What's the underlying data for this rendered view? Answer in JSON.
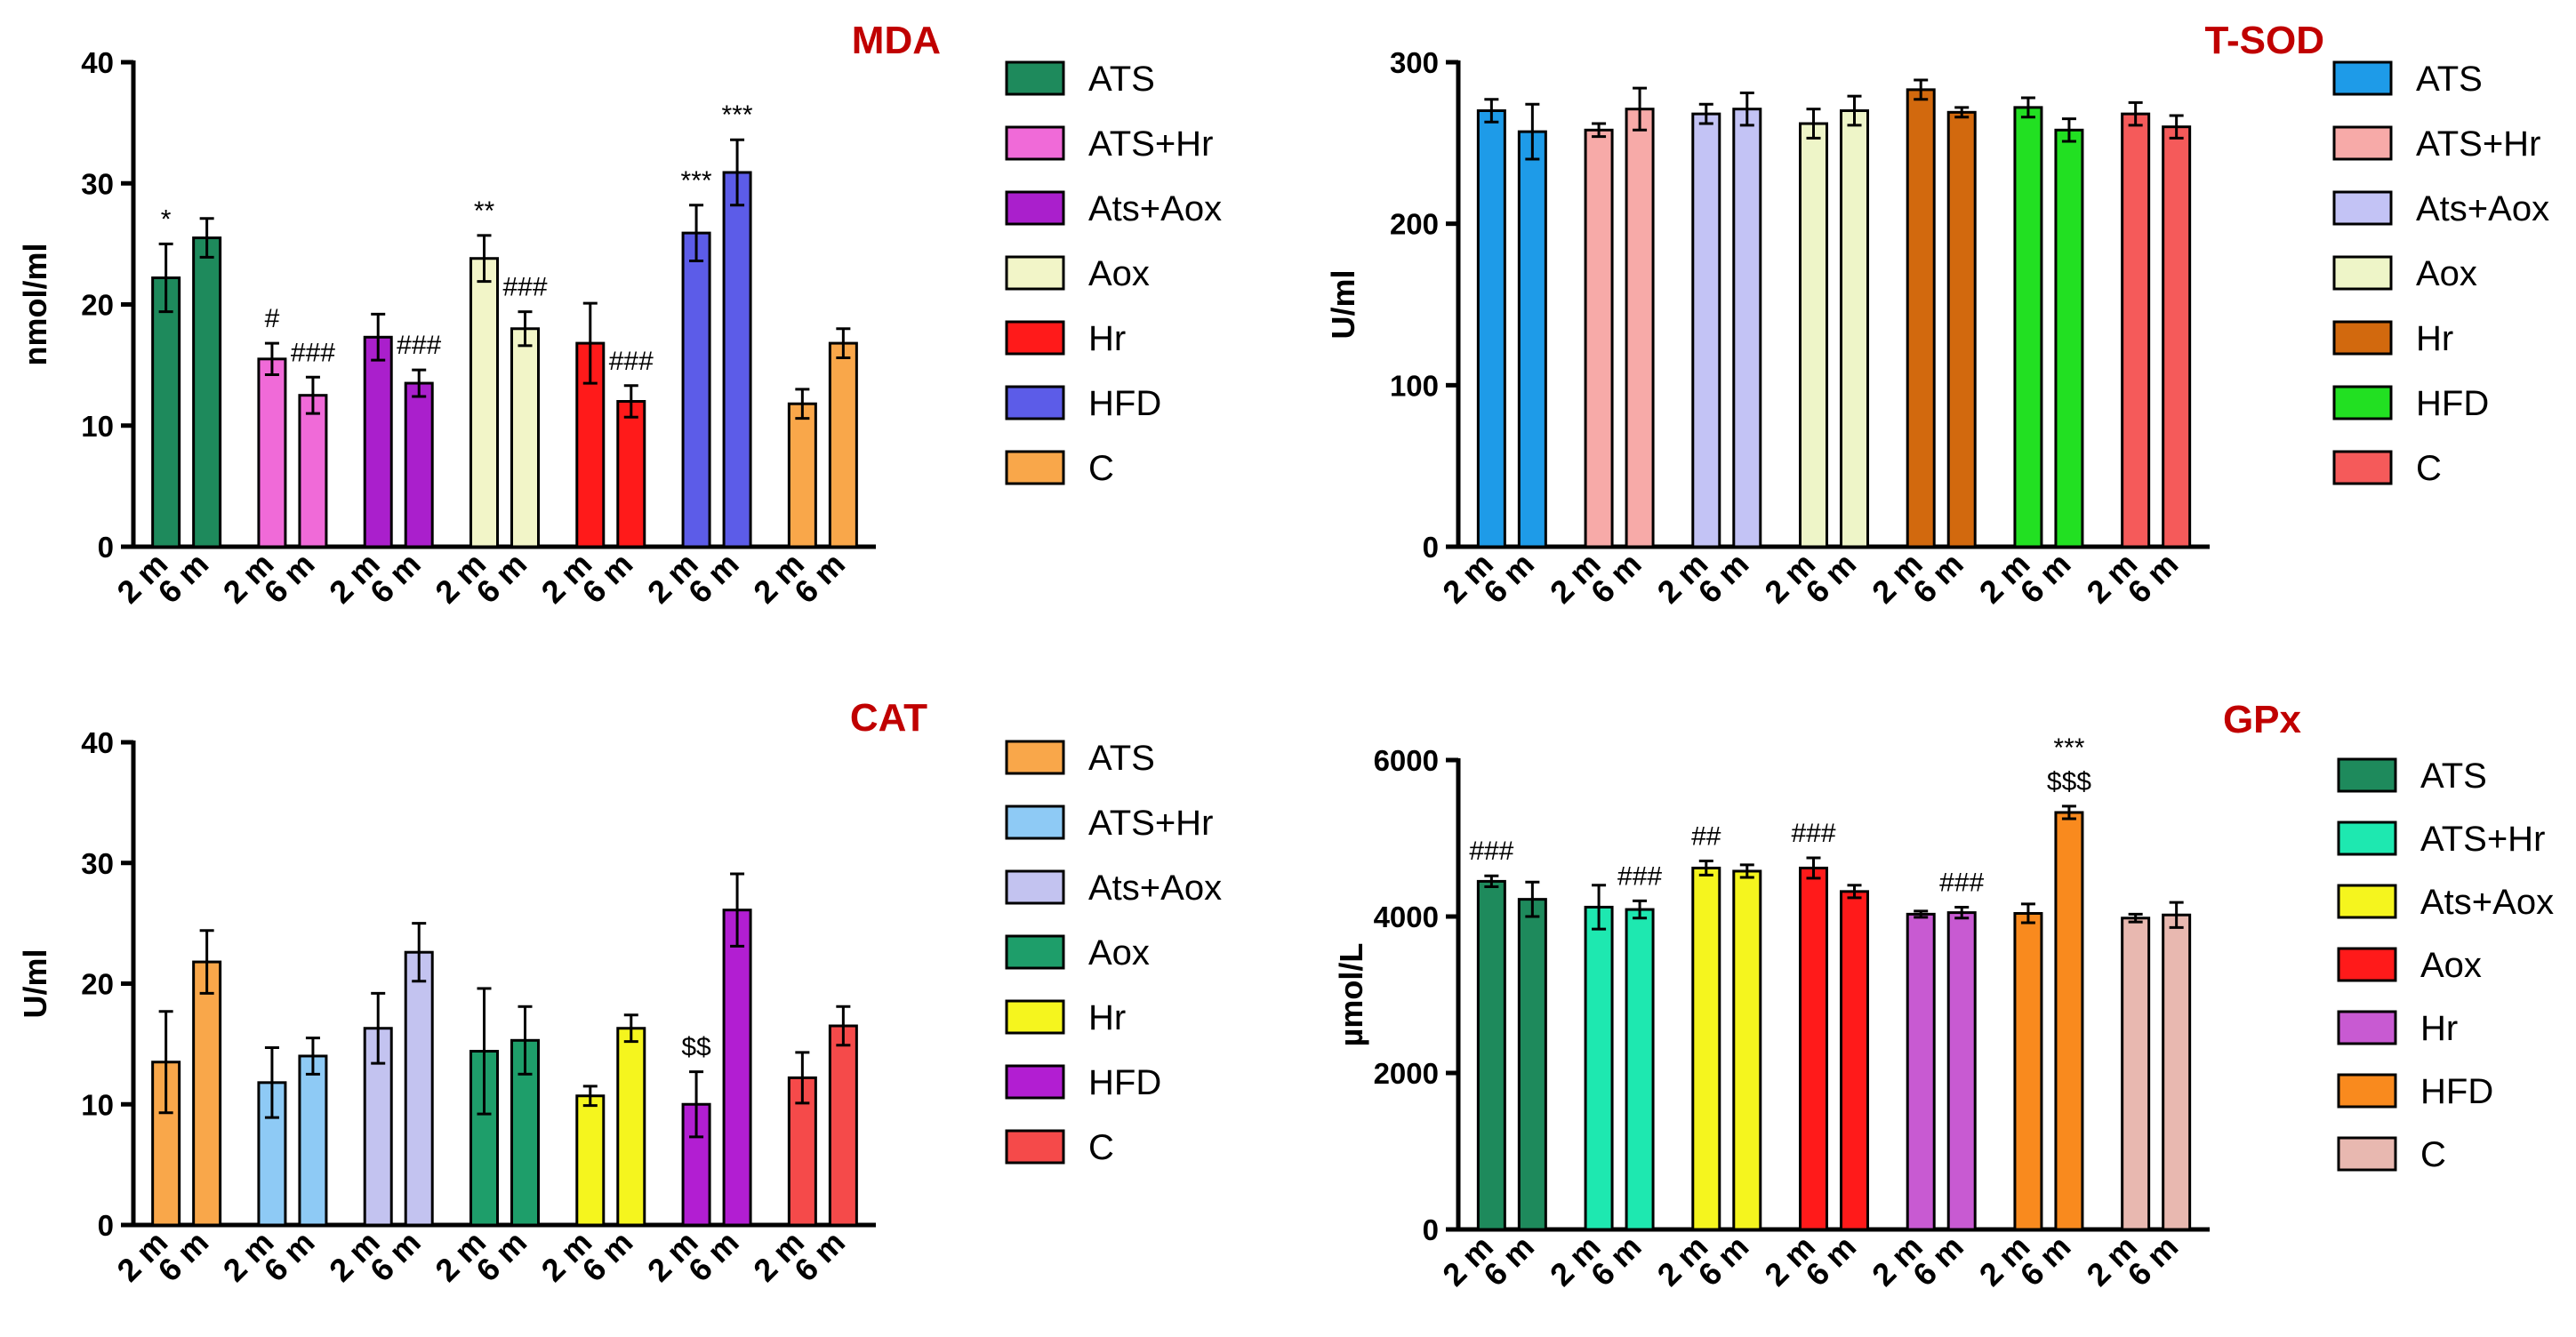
{
  "colors": {
    "title": "#c00000",
    "axis": "#000000"
  },
  "chart_data": [
    {
      "id": "mda",
      "type": "bar",
      "title": "MDA",
      "ylabel": "nmol/ml",
      "ylim": [
        0,
        40
      ],
      "yticks": [
        "0",
        "10",
        "20",
        "30",
        "40"
      ],
      "categories": [
        "2 m",
        "6 m"
      ],
      "groups": [
        {
          "name": "ATS",
          "color": "#1e8a5c",
          "values": [
            22.2,
            25.5
          ],
          "errors": [
            2.8,
            1.6
          ],
          "annotations": [
            "*",
            ""
          ]
        },
        {
          "name": "ATS+Hr",
          "color": "#f06ad8",
          "values": [
            15.5,
            12.5
          ],
          "errors": [
            1.3,
            1.5
          ],
          "annotations": [
            "#",
            "###"
          ]
        },
        {
          "name": "Ats+Aox",
          "color": "#aa1fcc",
          "values": [
            17.3,
            13.5
          ],
          "errors": [
            1.9,
            1.1
          ],
          "annotations": [
            "",
            "###"
          ]
        },
        {
          "name": "Aox",
          "color": "#f2f5c8",
          "values": [
            23.8,
            18.0
          ],
          "errors": [
            1.9,
            1.4
          ],
          "annotations": [
            "**",
            "###"
          ]
        },
        {
          "name": "Hr",
          "color": "#ff1a1a",
          "values": [
            16.8,
            12.0
          ],
          "errors": [
            3.3,
            1.3
          ],
          "annotations": [
            "",
            "###"
          ]
        },
        {
          "name": "HFD",
          "color": "#5c5ce8",
          "values": [
            25.9,
            30.9
          ],
          "errors": [
            2.3,
            2.7
          ],
          "annotations": [
            "***",
            "***"
          ]
        },
        {
          "name": "C",
          "color": "#f9a74a",
          "values": [
            11.8,
            16.8
          ],
          "errors": [
            1.2,
            1.2
          ],
          "annotations": [
            "",
            ""
          ]
        }
      ]
    },
    {
      "id": "tsod",
      "type": "bar",
      "title": "T-SOD",
      "ylabel": "U/ml",
      "ylim": [
        0,
        300
      ],
      "yticks": [
        "0",
        "100",
        "200",
        "300"
      ],
      "categories": [
        "2 m",
        "6 m"
      ],
      "groups": [
        {
          "name": "ATS",
          "color": "#1e9be8",
          "values": [
            270,
            257
          ],
          "errors": [
            7,
            17
          ],
          "annotations": [
            "",
            ""
          ]
        },
        {
          "name": "ATS+Hr",
          "color": "#f7aaa8",
          "values": [
            258,
            271
          ],
          "errors": [
            4,
            13
          ],
          "annotations": [
            "",
            ""
          ]
        },
        {
          "name": "Ats+Aox",
          "color": "#c3c3f5",
          "values": [
            268,
            271
          ],
          "errors": [
            6,
            10
          ],
          "annotations": [
            "",
            ""
          ]
        },
        {
          "name": "Aox",
          "color": "#eef5c8",
          "values": [
            262,
            270
          ],
          "errors": [
            9,
            9
          ],
          "annotations": [
            "",
            ""
          ]
        },
        {
          "name": "Hr",
          "color": "#d2690e",
          "values": [
            283,
            269
          ],
          "errors": [
            6,
            3
          ],
          "annotations": [
            "",
            ""
          ]
        },
        {
          "name": "HFD",
          "color": "#22e022",
          "values": [
            272,
            258
          ],
          "errors": [
            6,
            7
          ],
          "annotations": [
            "",
            ""
          ]
        },
        {
          "name": "C",
          "color": "#f55a5a",
          "values": [
            268,
            260
          ],
          "errors": [
            7,
            7
          ],
          "annotations": [
            "",
            ""
          ]
        }
      ]
    },
    {
      "id": "cat",
      "type": "bar",
      "title": "CAT",
      "ylabel": "U/ml",
      "ylim": [
        0,
        40
      ],
      "yticks": [
        "0",
        "10",
        "20",
        "30",
        "40"
      ],
      "categories": [
        "2 m",
        "6 m"
      ],
      "groups": [
        {
          "name": "ATS",
          "color": "#f9a74a",
          "values": [
            13.5,
            21.8
          ],
          "errors": [
            4.2,
            2.6
          ],
          "annotations": [
            "",
            ""
          ]
        },
        {
          "name": "ATS+Hr",
          "color": "#8ecaf5",
          "values": [
            11.8,
            14.0
          ],
          "errors": [
            2.9,
            1.5
          ],
          "annotations": [
            "",
            ""
          ]
        },
        {
          "name": "Ats+Aox",
          "color": "#c3c3f0",
          "values": [
            16.3,
            22.6
          ],
          "errors": [
            2.9,
            2.4
          ],
          "annotations": [
            "",
            ""
          ]
        },
        {
          "name": "Aox",
          "color": "#1e9e6a",
          "values": [
            14.4,
            15.3
          ],
          "errors": [
            5.2,
            2.8
          ],
          "annotations": [
            "",
            ""
          ]
        },
        {
          "name": "Hr",
          "color": "#f5f51e",
          "values": [
            10.7,
            16.3
          ],
          "errors": [
            0.8,
            1.1
          ],
          "annotations": [
            "",
            ""
          ]
        },
        {
          "name": "HFD",
          "color": "#b21ed2",
          "values": [
            10.0,
            26.1
          ],
          "errors": [
            2.7,
            3.0
          ],
          "annotations": [
            "$$",
            ""
          ]
        },
        {
          "name": "C",
          "color": "#f54a4a",
          "values": [
            12.2,
            16.5
          ],
          "errors": [
            2.1,
            1.6
          ],
          "annotations": [
            "",
            ""
          ]
        }
      ]
    },
    {
      "id": "gpx",
      "type": "bar",
      "title": "GPx",
      "ylabel": "µmol/L",
      "ylim": [
        0,
        6000
      ],
      "yticks": [
        "0",
        "2000",
        "4000",
        "6000"
      ],
      "categories": [
        "2 m",
        "6 m"
      ],
      "groups": [
        {
          "name": "ATS",
          "color": "#1e8a5c",
          "values": [
            4450,
            4220
          ],
          "errors": [
            70,
            220
          ],
          "annotations": [
            "###",
            ""
          ]
        },
        {
          "name": "ATS+Hr",
          "color": "#1ee8b0",
          "values": [
            4120,
            4090
          ],
          "errors": [
            280,
            110
          ],
          "annotations": [
            "",
            "###"
          ]
        },
        {
          "name": "Ats+Aox",
          "color": "#f5f51e",
          "values": [
            4620,
            4580
          ],
          "errors": [
            90,
            80
          ],
          "annotations": [
            "##",
            ""
          ]
        },
        {
          "name": "Aox",
          "color": "#ff1a1a",
          "values": [
            4620,
            4320
          ],
          "errors": [
            130,
            80
          ],
          "annotations": [
            "###",
            ""
          ]
        },
        {
          "name": "Hr",
          "color": "#c85ad2",
          "values": [
            4030,
            4050
          ],
          "errors": [
            40,
            70
          ],
          "annotations": [
            "",
            "###"
          ]
        },
        {
          "name": "HFD",
          "color": "#f98a1e",
          "values": [
            4040,
            5330
          ],
          "errors": [
            120,
            80
          ],
          "annotations": [
            "",
            "***\n$$$"
          ]
        },
        {
          "name": "C",
          "color": "#e8b8b0",
          "values": [
            3980,
            4020
          ],
          "errors": [
            50,
            160
          ],
          "annotations": [
            "",
            ""
          ]
        }
      ]
    }
  ]
}
